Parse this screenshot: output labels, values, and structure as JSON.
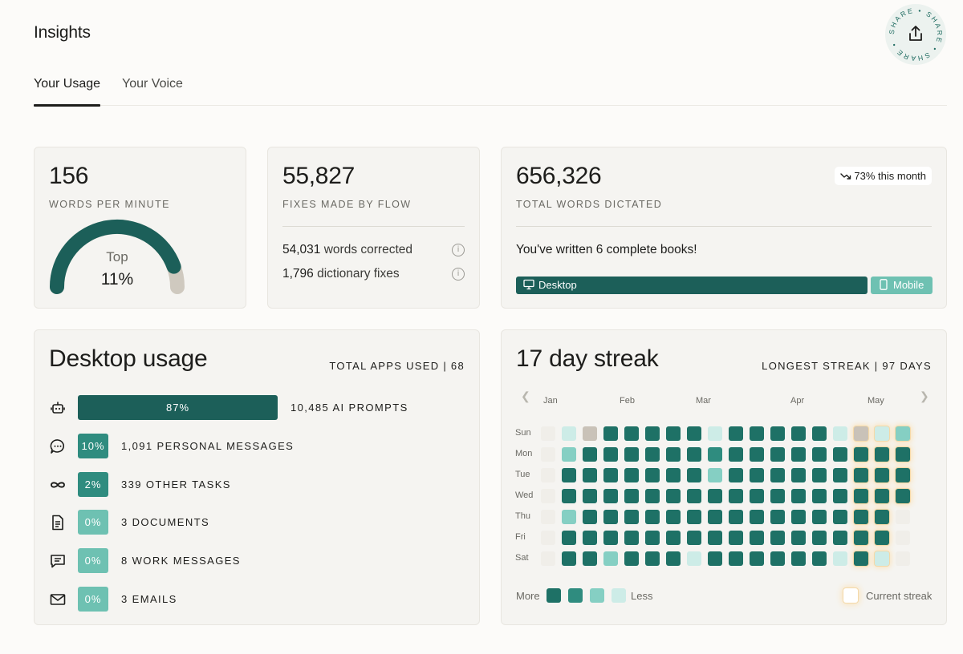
{
  "page": {
    "title": "Insights"
  },
  "tabs": [
    {
      "label": "Your Usage",
      "active": true
    },
    {
      "label": "Your Voice",
      "active": false
    }
  ],
  "share": {
    "label": "SHARE • SHARE • SHARE •",
    "icon": "share-icon"
  },
  "wpm": {
    "value": "156",
    "label": "WORDS PER MINUTE",
    "rank_label": "Top",
    "rank_value": "11%",
    "gauge_fraction": 0.89
  },
  "fixes": {
    "value": "55,827",
    "label": "FIXES MADE BY FLOW",
    "rows": [
      {
        "count": "54,031",
        "text": "words corrected"
      },
      {
        "count": "1,796",
        "text": "dictionary fixes"
      }
    ]
  },
  "dictated": {
    "value": "656,326",
    "label": "TOTAL WORDS DICTATED",
    "badge": "73% this month",
    "badge_icon": "trend-down-icon",
    "note": "You've written 6 complete books!",
    "split": [
      {
        "label": "Desktop",
        "fraction": 0.85,
        "icon": "monitor-icon"
      },
      {
        "label": "Mobile",
        "fraction": 0.15,
        "icon": "phone-icon"
      }
    ]
  },
  "desktop_usage": {
    "title": "Desktop usage",
    "total_apps": "TOTAL APPS USED | 68",
    "rows": [
      {
        "icon": "robot-icon",
        "percent": "87%",
        "fraction": 0.87,
        "label": "10,485 AI PROMPTS"
      },
      {
        "icon": "chat-bubble-icon",
        "percent": "10%",
        "fraction": 0.1,
        "label": "1,091 PERSONAL MESSAGES"
      },
      {
        "icon": "infinity-icon",
        "percent": "2%",
        "fraction": 0.02,
        "label": "339 OTHER TASKS"
      },
      {
        "icon": "document-icon",
        "percent": "0%",
        "fraction": 0.0,
        "label": "3 DOCUMENTS"
      },
      {
        "icon": "message-square-icon",
        "percent": "0%",
        "fraction": 0.0,
        "label": "8 WORK MESSAGES"
      },
      {
        "icon": "mail-icon",
        "percent": "0%",
        "fraction": 0.0,
        "label": "3 EMAILS"
      }
    ]
  },
  "streak": {
    "title": "17 day streak",
    "longest": "LONGEST STREAK | 97 DAYS",
    "months": [
      "Jan",
      "Feb",
      "Mar",
      "Apr",
      "May"
    ],
    "days": [
      "Sun",
      "Mon",
      "Tue",
      "Wed",
      "Thu",
      "Fri",
      "Sat"
    ],
    "legend": {
      "more": "More",
      "less": "Less",
      "current": "Current streak"
    },
    "levels": [
      "#f0eee9",
      "#1e7166",
      "#2f8c7f",
      "#85cfc3",
      "#cdece7",
      "#c9c2b8"
    ],
    "weeks": [
      [
        0,
        0,
        0,
        0,
        0,
        0,
        0
      ],
      [
        4,
        3,
        1,
        1,
        3,
        1,
        1
      ],
      [
        5,
        1,
        1,
        1,
        1,
        1,
        1
      ],
      [
        1,
        1,
        1,
        1,
        1,
        1,
        3
      ],
      [
        1,
        1,
        1,
        1,
        1,
        1,
        1
      ],
      [
        1,
        1,
        1,
        1,
        1,
        1,
        1
      ],
      [
        1,
        1,
        1,
        1,
        1,
        1,
        1
      ],
      [
        1,
        1,
        1,
        1,
        1,
        1,
        4
      ],
      [
        4,
        2,
        3,
        1,
        1,
        1,
        1
      ],
      [
        1,
        1,
        1,
        1,
        1,
        1,
        1
      ],
      [
        1,
        1,
        1,
        1,
        1,
        1,
        1
      ],
      [
        1,
        1,
        1,
        1,
        1,
        1,
        1
      ],
      [
        1,
        1,
        1,
        1,
        1,
        1,
        1
      ],
      [
        1,
        1,
        1,
        1,
        1,
        1,
        1
      ],
      [
        4,
        1,
        1,
        1,
        1,
        1,
        4
      ],
      [
        5,
        1,
        1,
        1,
        1,
        1,
        1
      ],
      [
        4,
        1,
        1,
        1,
        1,
        1,
        4
      ],
      [
        3,
        1,
        1,
        1,
        0,
        0,
        0
      ]
    ],
    "current_streak_weeks": [
      15,
      16,
      17
    ]
  }
}
